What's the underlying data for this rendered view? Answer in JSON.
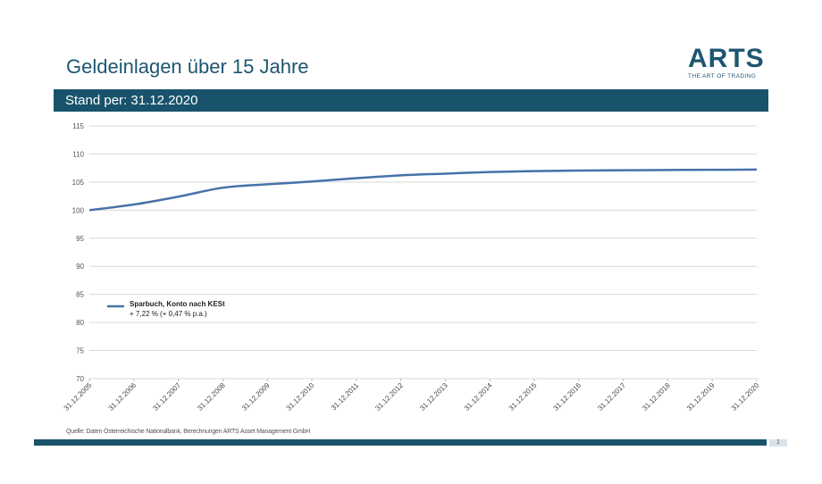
{
  "header": {
    "title": "Geldeinlagen über 15 Jahre",
    "subtitle": "Stand per: 31.12.2020"
  },
  "logo": {
    "name": "ARTS",
    "tagline": "THE ART OF TRADING"
  },
  "footer": {
    "source": "Quelle: Daten Österreichische Nationalbank, Berechnungen ARTS Asset Management GmbH",
    "page": "1"
  },
  "colors": {
    "brand": "#18536b",
    "line": "#4672a8",
    "grid": "#d9d9d9"
  },
  "chart_data": {
    "type": "line",
    "x": [
      "31.12.2005",
      "31.12.2006",
      "31.12.2007",
      "31.12.2008",
      "31.12.2009",
      "31.12.2010",
      "31.12.2011",
      "31.12.2012",
      "31.12.2013",
      "31.12.2014",
      "31.12.2015",
      "31.12.2016",
      "31.12.2017",
      "31.12.2018",
      "31.12.2019",
      "31.12.2020"
    ],
    "series": [
      {
        "name": "Sparbuch, Konto nach KESt",
        "note": "+ 7,22 % (+ 0,47 % p.a.)",
        "values": [
          100,
          101,
          102.4,
          104,
          104.6,
          105.1,
          105.7,
          106.2,
          106.5,
          106.8,
          106.95,
          107.05,
          107.1,
          107.15,
          107.18,
          107.22
        ]
      }
    ],
    "ylim": [
      70,
      115
    ],
    "yticks": [
      70,
      75,
      80,
      85,
      90,
      95,
      100,
      105,
      110,
      115
    ],
    "grid": true,
    "legend": "left-middle"
  }
}
